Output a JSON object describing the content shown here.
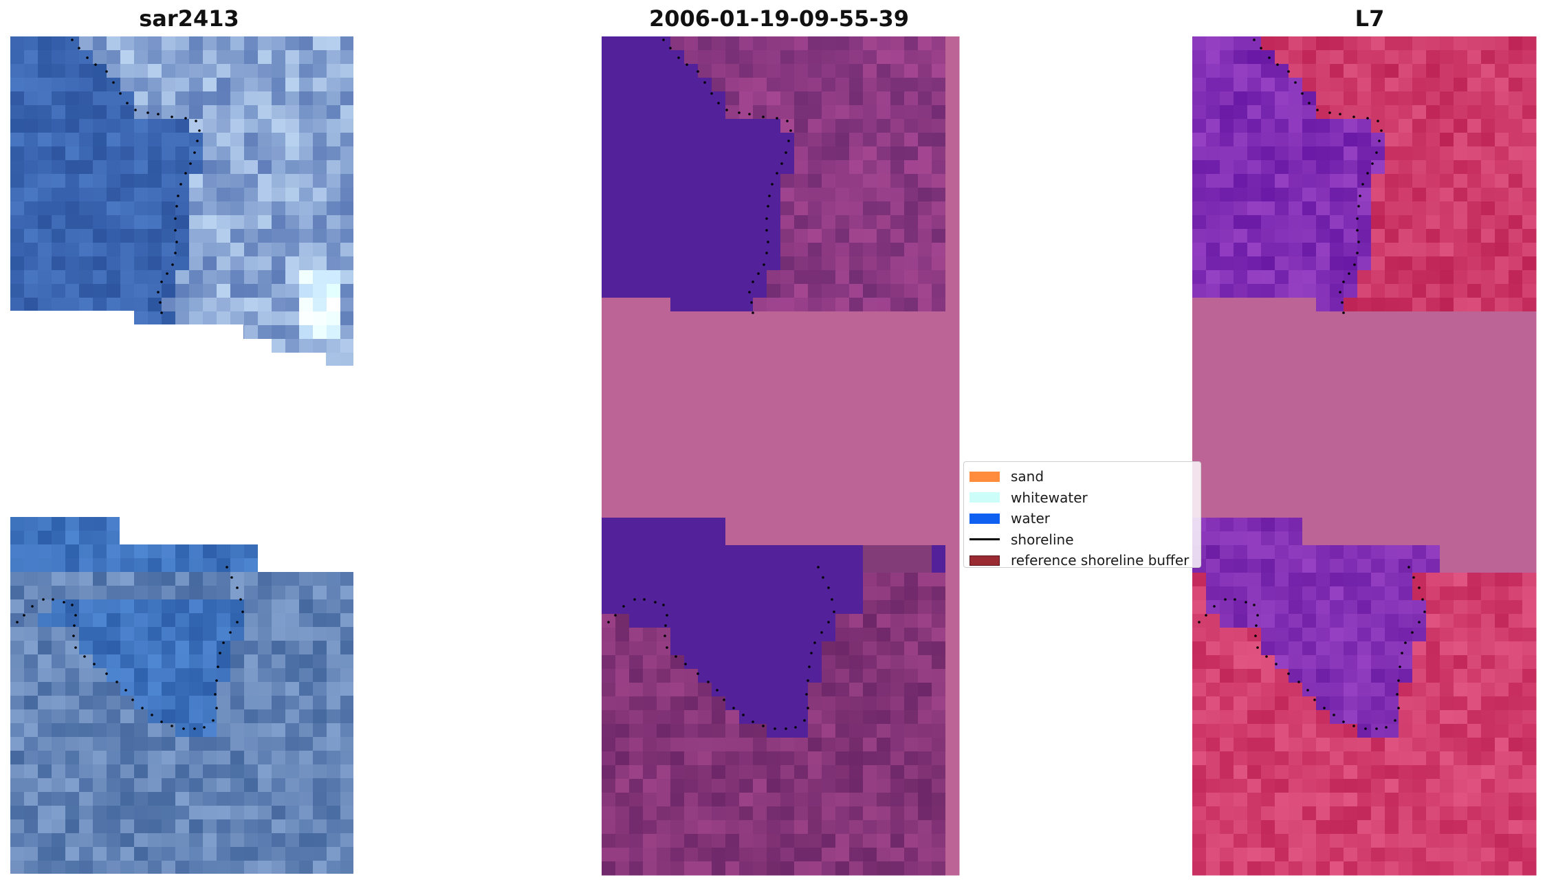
{
  "panels": [
    {
      "title": "sar2413"
    },
    {
      "title": "2006-01-19-09-55-39"
    },
    {
      "title": "L7"
    }
  ],
  "legend": {
    "items": [
      {
        "label": "sand",
        "type": "patch",
        "color": "#ff8c3d"
      },
      {
        "label": "whitewater",
        "type": "patch",
        "color": "#ccfdf8"
      },
      {
        "label": "water",
        "type": "patch",
        "color": "#0f5ff0"
      },
      {
        "label": "shoreline",
        "type": "line",
        "color": "#000000"
      },
      {
        "label": "reference shoreline buffer",
        "type": "patch",
        "color": "#9b2b33"
      }
    ]
  },
  "colors": {
    "rgb_water": "#3a63ae",
    "classification_water": "#53229a",
    "classification_land": "#7e3679",
    "classification_nodata": "#bc6496",
    "mndwi_water": "#6b1aa8",
    "mndwi_land": "#c5245a",
    "mndwi_nodata": "#bc6496"
  }
}
